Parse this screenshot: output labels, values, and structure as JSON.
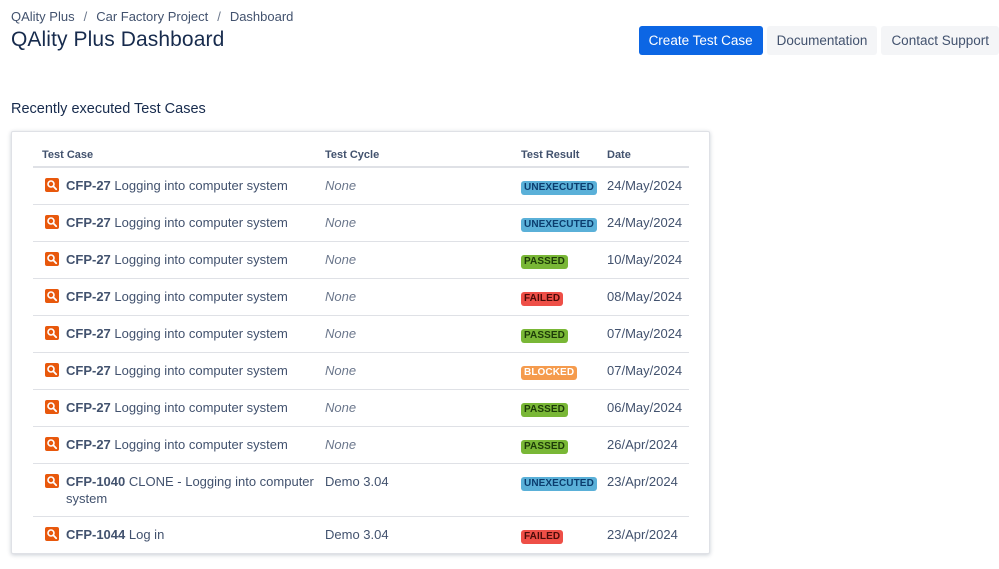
{
  "breadcrumb": [
    "QAlity Plus",
    "Car Factory Project",
    "Dashboard"
  ],
  "page_title": "QAlity Plus Dashboard",
  "actions": {
    "create": "Create Test Case",
    "docs": "Documentation",
    "support": "Contact Support"
  },
  "section_title": "Recently executed Test Cases",
  "table": {
    "headers": {
      "test_case": "Test Case",
      "test_cycle": "Test Cycle",
      "test_result": "Test Result",
      "date": "Date"
    },
    "rows": [
      {
        "key": "CFP-27",
        "title": "Logging into computer system",
        "cycle": "None",
        "result": "UNEXECUTED",
        "date": "24/May/2024"
      },
      {
        "key": "CFP-27",
        "title": "Logging into computer system",
        "cycle": "None",
        "result": "UNEXECUTED",
        "date": "24/May/2024"
      },
      {
        "key": "CFP-27",
        "title": "Logging into computer system",
        "cycle": "None",
        "result": "PASSED",
        "date": "10/May/2024"
      },
      {
        "key": "CFP-27",
        "title": "Logging into computer system",
        "cycle": "None",
        "result": "FAILED",
        "date": "08/May/2024"
      },
      {
        "key": "CFP-27",
        "title": "Logging into computer system",
        "cycle": "None",
        "result": "PASSED",
        "date": "07/May/2024"
      },
      {
        "key": "CFP-27",
        "title": "Logging into computer system",
        "cycle": "None",
        "result": "BLOCKED",
        "date": "07/May/2024"
      },
      {
        "key": "CFP-27",
        "title": "Logging into computer system",
        "cycle": "None",
        "result": "PASSED",
        "date": "06/May/2024"
      },
      {
        "key": "CFP-27",
        "title": "Logging into computer system",
        "cycle": "None",
        "result": "PASSED",
        "date": "26/Apr/2024"
      },
      {
        "key": "CFP-1040",
        "title": "CLONE - Logging into computer system",
        "cycle": "Demo 3.04",
        "result": "UNEXECUTED",
        "date": "23/Apr/2024"
      },
      {
        "key": "CFP-1044",
        "title": "Log in",
        "cycle": "Demo 3.04",
        "result": "FAILED",
        "date": "23/Apr/2024"
      }
    ]
  },
  "colors": {
    "primary": "#0c66e4",
    "test_case_icon": "#e8580c",
    "unexecuted": "#5ab0d8",
    "passed": "#79b736",
    "failed": "#ee4f47",
    "blocked": "#f59b4d"
  },
  "icons": {
    "test_case": "magnifier-test-icon"
  }
}
